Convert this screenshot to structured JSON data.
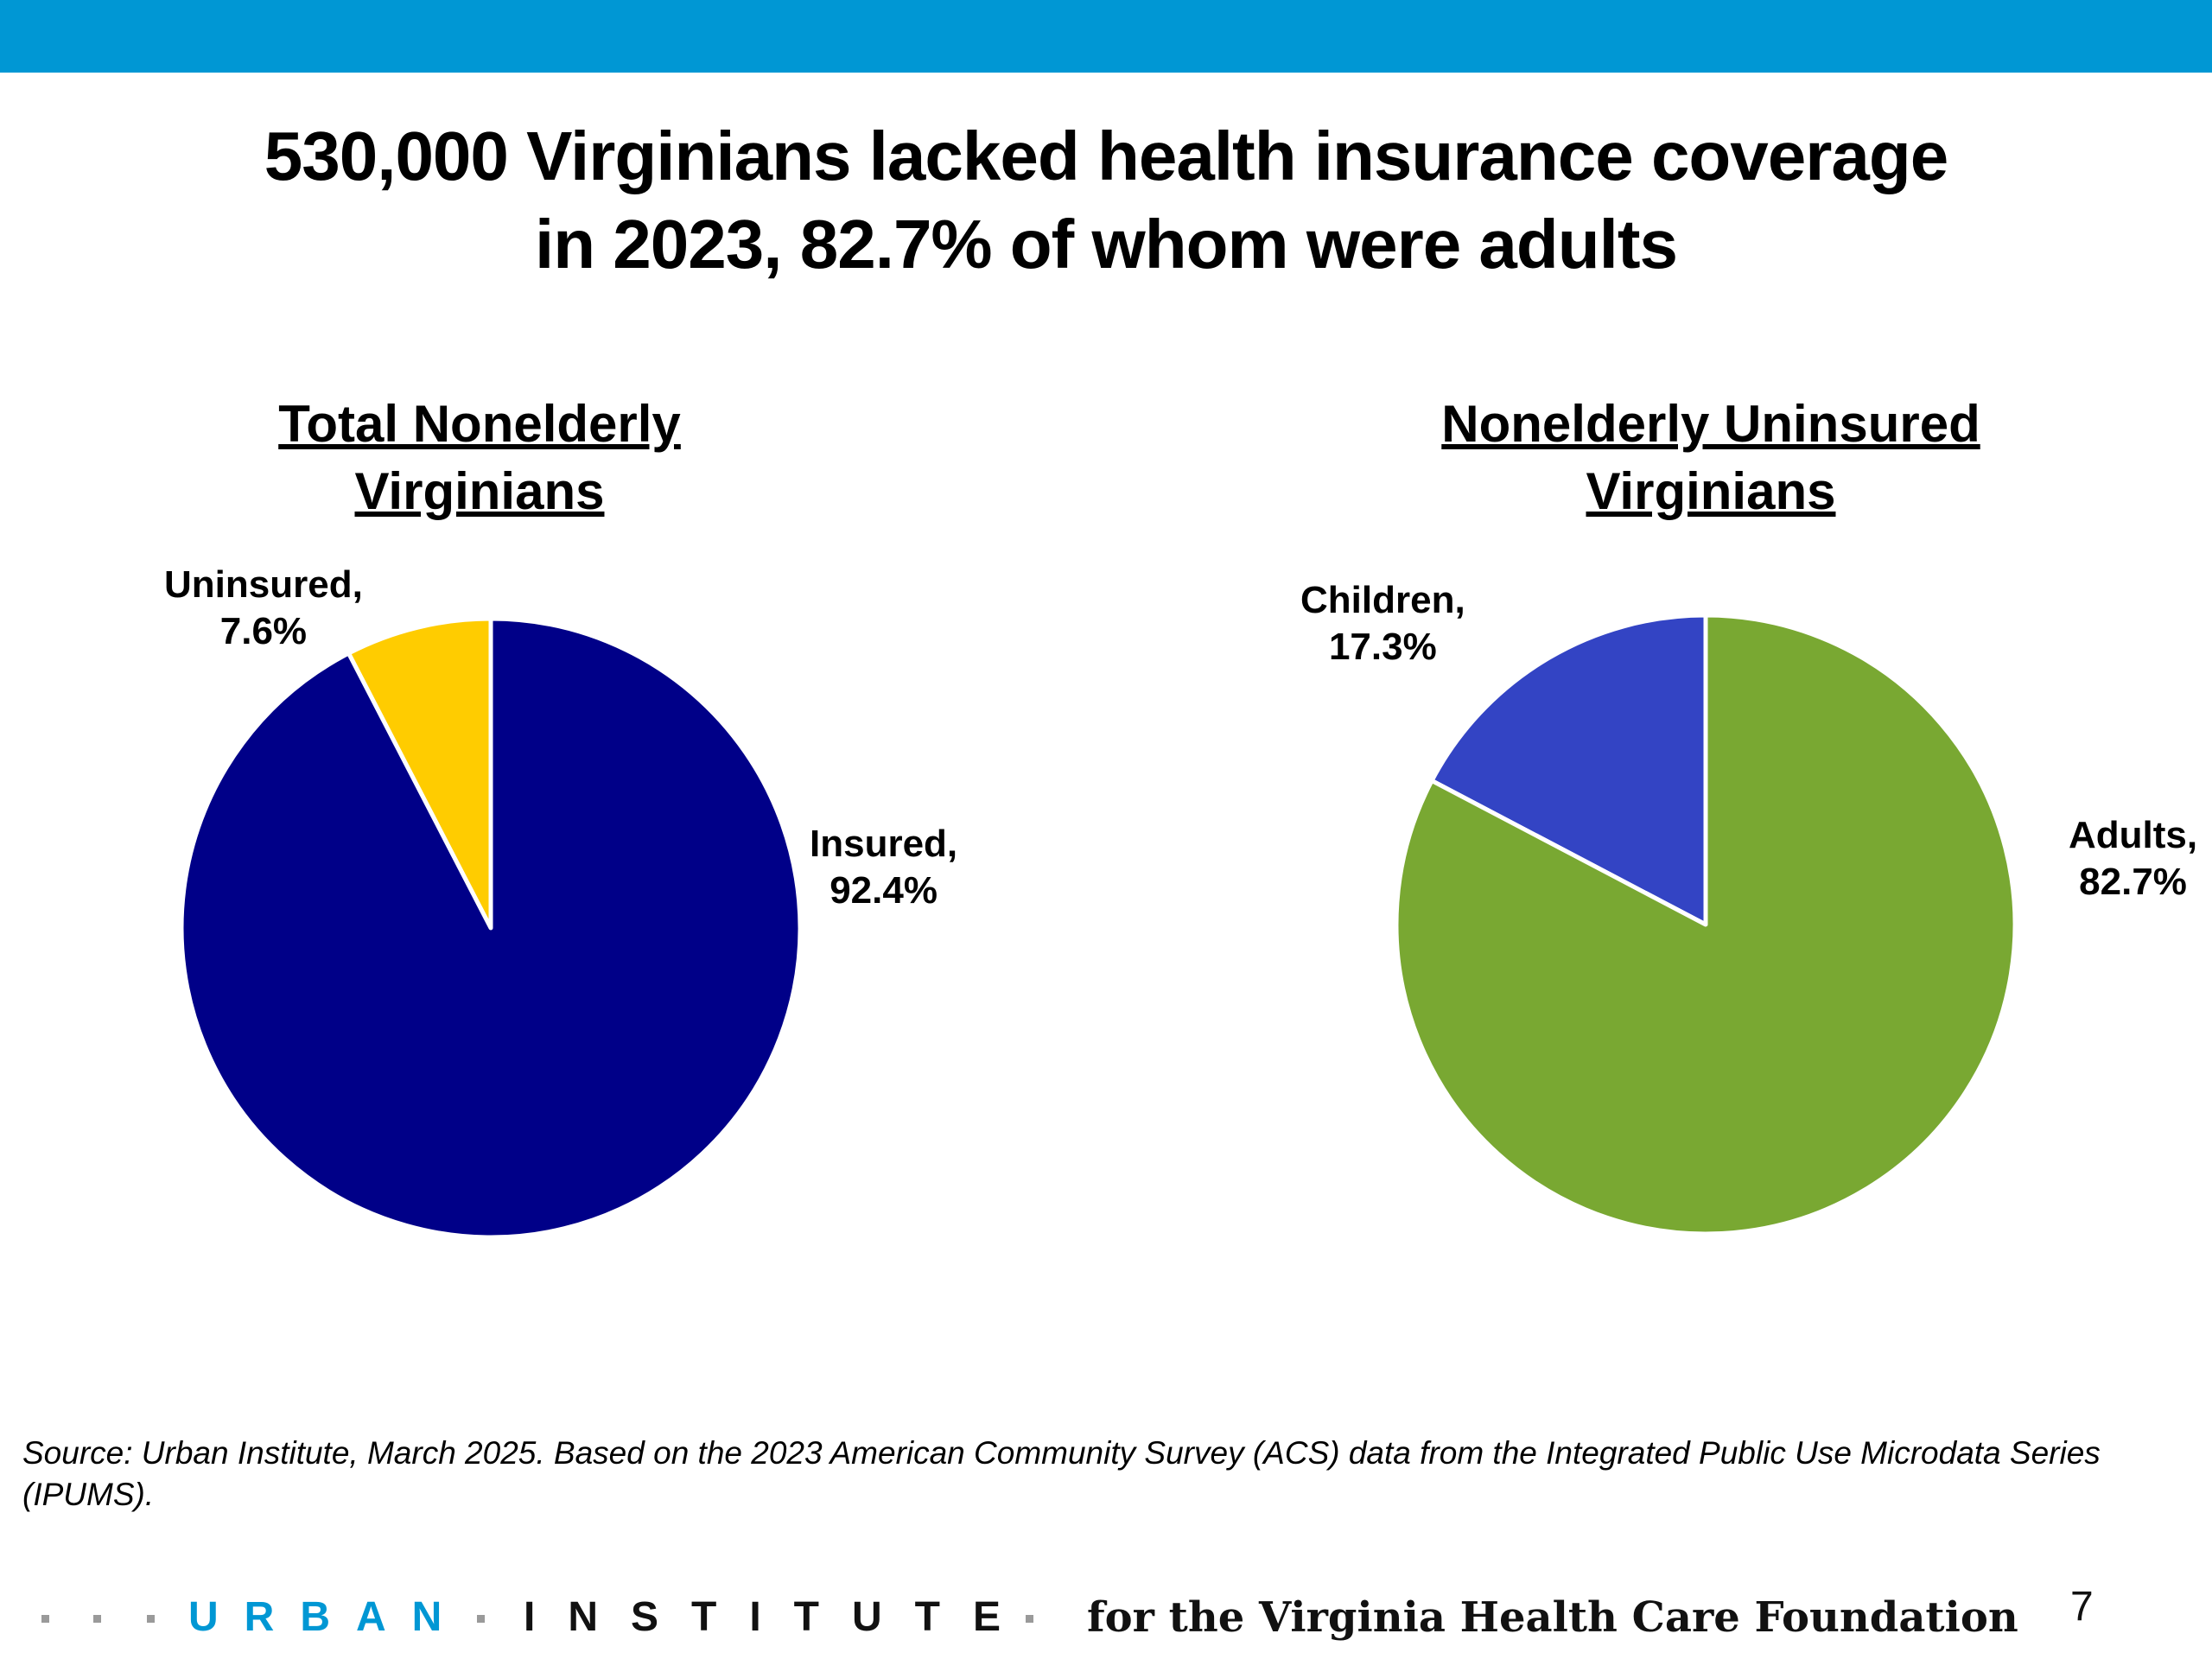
{
  "slide": {
    "title_line1": "530,000 Virginians lacked health insurance coverage",
    "title_line2": "in 2023, 82.7% of whom were adults",
    "source_text": "Source: Urban Institute, March 2025. Based on the 2023 American Community Survey (ACS) data from the Integrated Public Use Microdata Series (IPUMS).",
    "footer": {
      "logo_part1": "URBAN",
      "logo_part2": "INSTITUTE",
      "tagline": "for the Virginia Health Care Foundation",
      "page_number": "7"
    },
    "accent_color": "#0097D4"
  },
  "chart_data": [
    {
      "type": "pie",
      "title_line1": "Total Nonelderly",
      "title_line2": "Virginians",
      "slices": [
        {
          "label_name": "Uninsured,",
          "label_value": "7.6%",
          "value": 7.6,
          "color": "#FFCC00"
        },
        {
          "label_name": "Insured,",
          "label_value": "92.4%",
          "value": 92.4,
          "color": "#000088"
        }
      ]
    },
    {
      "type": "pie",
      "title_line1": "Nonelderly Uninsured",
      "title_line2": "Virginians",
      "slices": [
        {
          "label_name": "Children,",
          "label_value": "17.3%",
          "value": 17.3,
          "color": "#3344C4"
        },
        {
          "label_name": "Adults,",
          "label_value": "82.7%",
          "value": 82.7,
          "color": "#79A832"
        }
      ]
    }
  ]
}
